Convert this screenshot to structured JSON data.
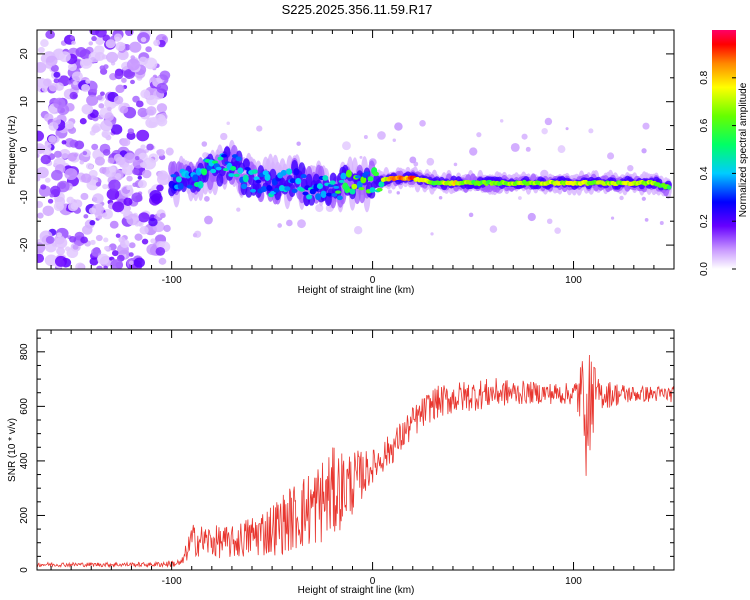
{
  "title": "S225.2025.356.11.59.R17",
  "colors": {
    "line": "#e8362f",
    "frame": "#000000"
  },
  "chart_data": [
    {
      "type": "heatmap",
      "xlabel": "Height of straight line (km)",
      "ylabel": "Frequency (Hz)",
      "xlim": [
        -167,
        150
      ],
      "ylim": [
        -25,
        25
      ],
      "xticks": [
        -100,
        0,
        100
      ],
      "xtick_labels": [
        "-100",
        "0",
        "100"
      ],
      "yticks": [
        -20,
        -10,
        0,
        10,
        20
      ],
      "ytick_labels": [
        "-20",
        "-10",
        "0",
        "10",
        "20"
      ],
      "colorbar": {
        "label": "Normalized spectral amplitude",
        "range": [
          0,
          1
        ],
        "ticks": [
          0.0,
          0.2,
          0.4,
          0.6,
          0.8
        ],
        "tick_labels": [
          "0.0",
          "0.2",
          "0.4",
          "0.6",
          "0.8"
        ]
      },
      "ridge": [
        {
          "x": -100,
          "f": -7,
          "a": 0.35
        },
        {
          "x": -90,
          "f": -6,
          "a": 0.45
        },
        {
          "x": -80,
          "f": -4,
          "a": 0.45
        },
        {
          "x": -70,
          "f": -3,
          "a": 0.45
        },
        {
          "x": -60,
          "f": -7,
          "a": 0.4
        },
        {
          "x": -50,
          "f": -7,
          "a": 0.4
        },
        {
          "x": -40,
          "f": -6,
          "a": 0.4
        },
        {
          "x": -30,
          "f": -8,
          "a": 0.4
        },
        {
          "x": -20,
          "f": -8,
          "a": 0.45
        },
        {
          "x": -10,
          "f": -7,
          "a": 0.6
        },
        {
          "x": 0,
          "f": -7,
          "a": 0.5
        },
        {
          "x": 10,
          "f": -6,
          "a": 0.9
        },
        {
          "x": 20,
          "f": -6,
          "a": 0.9
        },
        {
          "x": 30,
          "f": -7,
          "a": 0.65
        },
        {
          "x": 40,
          "f": -7,
          "a": 0.8
        },
        {
          "x": 50,
          "f": -7,
          "a": 0.65
        },
        {
          "x": 60,
          "f": -7,
          "a": 0.65
        },
        {
          "x": 70,
          "f": -7,
          "a": 0.7
        },
        {
          "x": 80,
          "f": -7,
          "a": 0.7
        },
        {
          "x": 90,
          "f": -7,
          "a": 0.75
        },
        {
          "x": 100,
          "f": -7,
          "a": 0.75
        },
        {
          "x": 110,
          "f": -7,
          "a": 0.7
        },
        {
          "x": 120,
          "f": -7,
          "a": 0.7
        },
        {
          "x": 130,
          "f": -7,
          "a": 0.75
        },
        {
          "x": 140,
          "f": -7,
          "a": 0.7
        },
        {
          "x": 148,
          "f": -8,
          "a": 0.6
        }
      ],
      "noise_region_x": [
        -167,
        -103
      ]
    },
    {
      "type": "line",
      "xlabel": "Height of straight line (km)",
      "ylabel": "SNR (10 * v/v)",
      "xlim": [
        -167,
        150
      ],
      "ylim": [
        0,
        880
      ],
      "xticks": [
        -100,
        0,
        100
      ],
      "xtick_labels": [
        "-100",
        "0",
        "100"
      ],
      "yticks": [
        0,
        200,
        400,
        600,
        800
      ],
      "ytick_labels": [
        "0",
        "200",
        "400",
        "600",
        "800"
      ],
      "series": [
        {
          "name": "SNR",
          "envelope": [
            {
              "x": -167,
              "mean": 20,
              "noise": 8
            },
            {
              "x": -110,
              "mean": 20,
              "noise": 8
            },
            {
              "x": -95,
              "mean": 25,
              "noise": 15
            },
            {
              "x": -90,
              "mean": 110,
              "noise": 60
            },
            {
              "x": -70,
              "mean": 100,
              "noise": 60
            },
            {
              "x": -50,
              "mean": 150,
              "noise": 100
            },
            {
              "x": -30,
              "mean": 230,
              "noise": 150
            },
            {
              "x": -20,
              "mean": 280,
              "noise": 170
            },
            {
              "x": -10,
              "mean": 320,
              "noise": 120
            },
            {
              "x": 0,
              "mean": 380,
              "noise": 60
            },
            {
              "x": 10,
              "mean": 450,
              "noise": 60
            },
            {
              "x": 20,
              "mean": 540,
              "noise": 60
            },
            {
              "x": 30,
              "mean": 610,
              "noise": 60
            },
            {
              "x": 40,
              "mean": 630,
              "noise": 60
            },
            {
              "x": 60,
              "mean": 650,
              "noise": 55
            },
            {
              "x": 80,
              "mean": 650,
              "noise": 40
            },
            {
              "x": 100,
              "mean": 645,
              "noise": 40
            },
            {
              "x": 104,
              "mean": 645,
              "noise": 140
            },
            {
              "x": 108,
              "mean": 645,
              "noise": 220
            },
            {
              "x": 112,
              "mean": 645,
              "noise": 60
            },
            {
              "x": 130,
              "mean": 645,
              "noise": 30
            },
            {
              "x": 150,
              "mean": 645,
              "noise": 30
            }
          ]
        }
      ]
    }
  ]
}
